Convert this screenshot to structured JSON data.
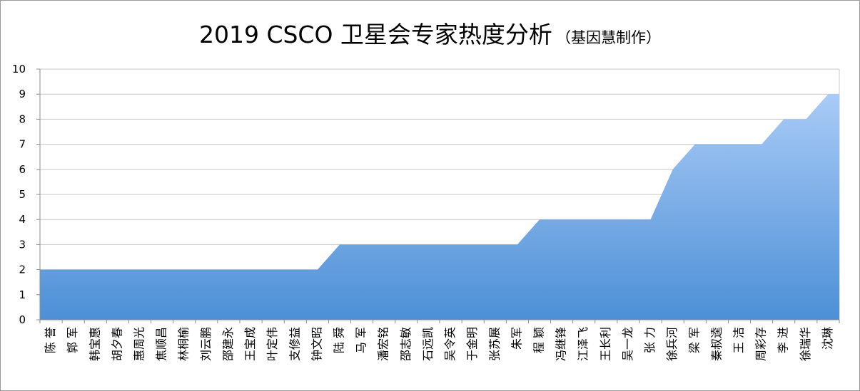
{
  "chart_data": {
    "type": "area",
    "title": "2019 CSCO 卫星会专家热度分析",
    "subtitle": "（基因慧制作）",
    "xlabel": "",
    "ylabel": "",
    "ylim": [
      0,
      10
    ],
    "yticks": [
      0,
      1,
      2,
      3,
      4,
      5,
      6,
      7,
      8,
      9,
      10
    ],
    "grid": true,
    "legend": "none",
    "colors": {
      "fill_top": "#a9cbf6",
      "fill_bottom": "#4d8fd6",
      "grid": "#c8c8c8",
      "axis": "#8c8c8c"
    },
    "categories": [
      "陈 誉",
      "郭 军",
      "韩宝惠",
      "胡夕春",
      "惠周光",
      "焦顺昌",
      "林桐榆",
      "刘云鹏",
      "邵建永",
      "王宝成",
      "叶定伟",
      "支修益",
      "钟文昭",
      "陆 舜",
      "马 军",
      "潘宏铭",
      "邵志敏",
      "石远凯",
      "吴令英",
      "于金明",
      "张苏展",
      "朱军",
      "程 颖",
      "冯继锋",
      "江泽飞",
      "王长利",
      "吴一龙",
      "张 力",
      "徐兵河",
      "梁 军",
      "秦叔逵",
      "王 洁",
      "周彩存",
      "李 进",
      "徐瑞华",
      "沈琳"
    ],
    "values": [
      2,
      2,
      2,
      2,
      2,
      2,
      2,
      2,
      2,
      2,
      2,
      2,
      2,
      3,
      3,
      3,
      3,
      3,
      3,
      3,
      3,
      3,
      4,
      4,
      4,
      4,
      4,
      4,
      6,
      7,
      7,
      7,
      7,
      8,
      8,
      9
    ]
  }
}
